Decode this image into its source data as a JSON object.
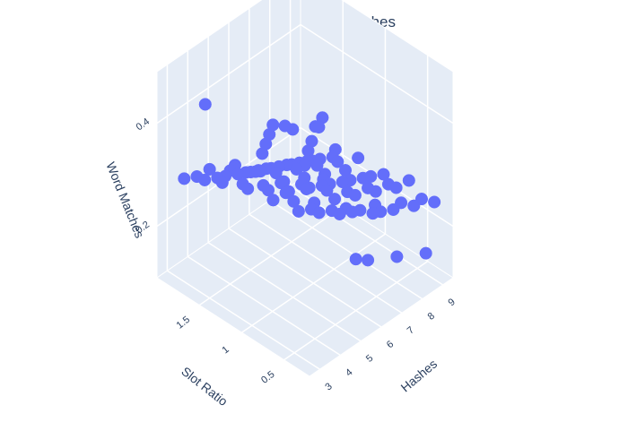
{
  "chart_data": {
    "type": "scatter3d",
    "title": "german - Word Matches",
    "axes": {
      "x": {
        "label": "Hashes",
        "range": [
          2.5,
          9.5
        ],
        "ticks": [
          3,
          4,
          5,
          6,
          7,
          8,
          9
        ],
        "tick_labels": [
          "3",
          "4",
          "5",
          "6",
          "7",
          "8",
          "9"
        ]
      },
      "y": {
        "label": "Slot Ratio",
        "range": [
          0.2,
          2.0
        ],
        "ticks": [
          0.5,
          1,
          1.5
        ],
        "tick_labels": [
          "0.5",
          "1",
          "1.5"
        ]
      },
      "z": {
        "label": "Word Matches",
        "range": [
          0.1,
          0.5
        ],
        "ticks": [
          0.2,
          0.4
        ],
        "tick_labels": [
          "0.2",
          "0.4"
        ]
      }
    },
    "marker_color": "#636efa",
    "scene_background": "#e5ecf6",
    "grid": true,
    "points": [
      {
        "x": 3,
        "y": 0.3,
        "z": 0.4
      },
      {
        "x": 3,
        "y": 0.45,
        "z": 0.38
      },
      {
        "x": 3,
        "y": 0.6,
        "z": 0.4
      },
      {
        "x": 3,
        "y": 0.75,
        "z": 0.37
      },
      {
        "x": 3,
        "y": 0.9,
        "z": 0.41
      },
      {
        "x": 3,
        "y": 1.05,
        "z": 0.36
      },
      {
        "x": 3,
        "y": 1.2,
        "z": 0.39
      },
      {
        "x": 3,
        "y": 1.35,
        "z": 0.34
      },
      {
        "x": 3,
        "y": 1.5,
        "z": 0.35
      },
      {
        "x": 3,
        "y": 1.65,
        "z": 0.32
      },
      {
        "x": 3,
        "y": 1.8,
        "z": 0.3
      },
      {
        "x": 4,
        "y": 0.3,
        "z": 0.37
      },
      {
        "x": 4,
        "y": 0.45,
        "z": 0.35
      },
      {
        "x": 4,
        "y": 0.6,
        "z": 0.38
      },
      {
        "x": 4,
        "y": 0.75,
        "z": 0.34
      },
      {
        "x": 4,
        "y": 0.9,
        "z": 0.36
      },
      {
        "x": 4,
        "y": 1.05,
        "z": 0.33
      },
      {
        "x": 4,
        "y": 1.2,
        "z": 0.35
      },
      {
        "x": 4,
        "y": 1.35,
        "z": 0.31
      },
      {
        "x": 4,
        "y": 1.5,
        "z": 0.32
      },
      {
        "x": 4,
        "y": 1.65,
        "z": 0.29
      },
      {
        "x": 4,
        "y": 1.8,
        "z": 0.27
      },
      {
        "x": 5,
        "y": 0.3,
        "z": 0.34
      },
      {
        "x": 5,
        "y": 0.45,
        "z": 0.32
      },
      {
        "x": 5,
        "y": 0.6,
        "z": 0.35
      },
      {
        "x": 5,
        "y": 0.75,
        "z": 0.31
      },
      {
        "x": 5,
        "y": 0.9,
        "z": 0.33
      },
      {
        "x": 5,
        "y": 1.05,
        "z": 0.3
      },
      {
        "x": 5,
        "y": 1.2,
        "z": 0.32
      },
      {
        "x": 5,
        "y": 1.35,
        "z": 0.28
      },
      {
        "x": 5,
        "y": 1.5,
        "z": 0.29
      },
      {
        "x": 5,
        "y": 1.65,
        "z": 0.27
      },
      {
        "x": 5,
        "y": 1.8,
        "z": 0.25
      },
      {
        "x": 6,
        "y": 0.3,
        "z": 0.31
      },
      {
        "x": 6,
        "y": 0.45,
        "z": 0.3
      },
      {
        "x": 6,
        "y": 0.6,
        "z": 0.32
      },
      {
        "x": 6,
        "y": 0.75,
        "z": 0.29
      },
      {
        "x": 6,
        "y": 0.9,
        "z": 0.3
      },
      {
        "x": 6,
        "y": 1.05,
        "z": 0.28
      },
      {
        "x": 6,
        "y": 1.2,
        "z": 0.3
      },
      {
        "x": 6,
        "y": 1.35,
        "z": 0.26
      },
      {
        "x": 6,
        "y": 1.5,
        "z": 0.27
      },
      {
        "x": 6,
        "y": 1.65,
        "z": 0.25
      },
      {
        "x": 6,
        "y": 1.8,
        "z": 0.23
      },
      {
        "x": 7,
        "y": 0.3,
        "z": 0.29
      },
      {
        "x": 7,
        "y": 0.45,
        "z": 0.27
      },
      {
        "x": 7,
        "y": 0.6,
        "z": 0.3
      },
      {
        "x": 7,
        "y": 0.75,
        "z": 0.27
      },
      {
        "x": 7,
        "y": 0.9,
        "z": 0.28
      },
      {
        "x": 7,
        "y": 1.05,
        "z": 0.26
      },
      {
        "x": 7,
        "y": 1.2,
        "z": 0.28
      },
      {
        "x": 7,
        "y": 1.35,
        "z": 0.24
      },
      {
        "x": 7,
        "y": 1.5,
        "z": 0.25
      },
      {
        "x": 7,
        "y": 1.65,
        "z": 0.23
      },
      {
        "x": 7,
        "y": 1.8,
        "z": 0.21
      },
      {
        "x": 8,
        "y": 0.3,
        "z": 0.27
      },
      {
        "x": 8,
        "y": 0.45,
        "z": 0.26
      },
      {
        "x": 8,
        "y": 0.6,
        "z": 0.28
      },
      {
        "x": 8,
        "y": 0.75,
        "z": 0.25
      },
      {
        "x": 8,
        "y": 0.9,
        "z": 0.26
      },
      {
        "x": 8,
        "y": 1.05,
        "z": 0.24
      },
      {
        "x": 8,
        "y": 1.2,
        "z": 0.26
      },
      {
        "x": 8,
        "y": 1.35,
        "z": 0.22
      },
      {
        "x": 8,
        "y": 1.5,
        "z": 0.23
      },
      {
        "x": 8,
        "y": 1.65,
        "z": 0.21
      },
      {
        "x": 8,
        "y": 1.8,
        "z": 0.19
      },
      {
        "x": 9,
        "y": 0.3,
        "z": 0.25
      },
      {
        "x": 9,
        "y": 0.45,
        "z": 0.24
      },
      {
        "x": 9,
        "y": 0.6,
        "z": 0.26
      },
      {
        "x": 9,
        "y": 0.75,
        "z": 0.23
      },
      {
        "x": 9,
        "y": 0.9,
        "z": 0.24
      },
      {
        "x": 9,
        "y": 1.05,
        "z": 0.22
      },
      {
        "x": 9,
        "y": 1.2,
        "z": 0.24
      },
      {
        "x": 9,
        "y": 1.35,
        "z": 0.2
      },
      {
        "x": 9,
        "y": 1.5,
        "z": 0.21
      },
      {
        "x": 9,
        "y": 1.65,
        "z": 0.19
      },
      {
        "x": 9,
        "y": 1.8,
        "z": 0.17
      },
      {
        "x": 3.5,
        "y": 0.5,
        "z": 0.45
      },
      {
        "x": 4.5,
        "y": 0.7,
        "z": 0.43
      },
      {
        "x": 5.5,
        "y": 0.9,
        "z": 0.4
      },
      {
        "x": 6.5,
        "y": 1.1,
        "z": 0.38
      },
      {
        "x": 7.5,
        "y": 1.3,
        "z": 0.33
      },
      {
        "x": 8.5,
        "y": 1.5,
        "z": 0.3
      },
      {
        "x": 3.5,
        "y": 1.0,
        "z": 0.42
      },
      {
        "x": 4.5,
        "y": 1.2,
        "z": 0.39
      },
      {
        "x": 5.5,
        "y": 1.4,
        "z": 0.36
      },
      {
        "x": 6.5,
        "y": 1.6,
        "z": 0.33
      },
      {
        "x": 7.5,
        "y": 1.7,
        "z": 0.29
      },
      {
        "x": 8.5,
        "y": 1.85,
        "z": 0.24
      },
      {
        "x": 9,
        "y": 0.4,
        "z": 0.14
      },
      {
        "x": 8,
        "y": 0.5,
        "z": 0.15
      },
      {
        "x": 7,
        "y": 0.6,
        "z": 0.16
      },
      {
        "x": 9,
        "y": 1.0,
        "z": 0.17
      },
      {
        "x": 8,
        "y": 1.1,
        "z": 0.18
      },
      {
        "x": 6,
        "y": 0.5,
        "z": 0.2
      },
      {
        "x": 4,
        "y": 0.4,
        "z": 0.42
      },
      {
        "x": 5,
        "y": 0.5,
        "z": 0.44
      },
      {
        "x": 3.2,
        "y": 1.6,
        "z": 0.46
      }
    ]
  }
}
